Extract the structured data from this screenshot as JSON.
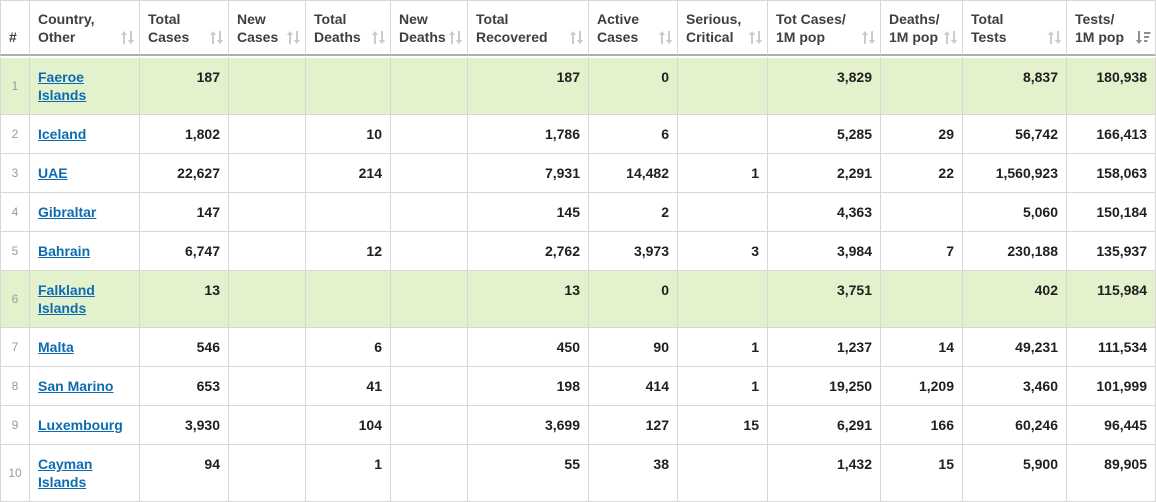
{
  "table": {
    "columns": [
      {
        "key": "rank",
        "label": "#",
        "line1": "#",
        "line2": "",
        "sort": "none"
      },
      {
        "key": "country",
        "line1": "Country,",
        "line2": "Other",
        "sort": "both"
      },
      {
        "key": "total_cases",
        "line1": "Total",
        "line2": "Cases",
        "sort": "both"
      },
      {
        "key": "new_cases",
        "line1": "New",
        "line2": "Cases",
        "sort": "both"
      },
      {
        "key": "total_deaths",
        "line1": "Total",
        "line2": "Deaths",
        "sort": "both"
      },
      {
        "key": "new_deaths",
        "line1": "New",
        "line2": "Deaths",
        "sort": "both"
      },
      {
        "key": "total_recovered",
        "line1": "Total",
        "line2": "Recovered",
        "sort": "both"
      },
      {
        "key": "active_cases",
        "line1": "Active",
        "line2": "Cases",
        "sort": "both"
      },
      {
        "key": "serious_critical",
        "line1": "Serious,",
        "line2": "Critical",
        "sort": "both"
      },
      {
        "key": "tot_cases_1m",
        "line1": "Tot Cases/",
        "line2": "1M pop",
        "sort": "both"
      },
      {
        "key": "deaths_1m",
        "line1": "Deaths/",
        "line2": "1M pop",
        "sort": "both"
      },
      {
        "key": "total_tests",
        "line1": "Total",
        "line2": "Tests",
        "sort": "both"
      },
      {
        "key": "tests_1m",
        "line1": "Tests/",
        "line2": "1M pop",
        "sort": "desc"
      }
    ],
    "rows": [
      {
        "rank": "1",
        "country": "Faeroe Islands",
        "total_cases": "187",
        "new_cases": "",
        "total_deaths": "",
        "new_deaths": "",
        "total_recovered": "187",
        "active_cases": "0",
        "serious_critical": "",
        "tot_cases_1m": "3,829",
        "deaths_1m": "",
        "total_tests": "8,837",
        "tests_1m": "180,938",
        "highlighted": true
      },
      {
        "rank": "2",
        "country": "Iceland",
        "total_cases": "1,802",
        "new_cases": "",
        "total_deaths": "10",
        "new_deaths": "",
        "total_recovered": "1,786",
        "active_cases": "6",
        "serious_critical": "",
        "tot_cases_1m": "5,285",
        "deaths_1m": "29",
        "total_tests": "56,742",
        "tests_1m": "166,413",
        "highlighted": false
      },
      {
        "rank": "3",
        "country": "UAE",
        "total_cases": "22,627",
        "new_cases": "",
        "total_deaths": "214",
        "new_deaths": "",
        "total_recovered": "7,931",
        "active_cases": "14,482",
        "serious_critical": "1",
        "tot_cases_1m": "2,291",
        "deaths_1m": "22",
        "total_tests": "1,560,923",
        "tests_1m": "158,063",
        "highlighted": false
      },
      {
        "rank": "4",
        "country": "Gibraltar",
        "total_cases": "147",
        "new_cases": "",
        "total_deaths": "",
        "new_deaths": "",
        "total_recovered": "145",
        "active_cases": "2",
        "serious_critical": "",
        "tot_cases_1m": "4,363",
        "deaths_1m": "",
        "total_tests": "5,060",
        "tests_1m": "150,184",
        "highlighted": false
      },
      {
        "rank": "5",
        "country": "Bahrain",
        "total_cases": "6,747",
        "new_cases": "",
        "total_deaths": "12",
        "new_deaths": "",
        "total_recovered": "2,762",
        "active_cases": "3,973",
        "serious_critical": "3",
        "tot_cases_1m": "3,984",
        "deaths_1m": "7",
        "total_tests": "230,188",
        "tests_1m": "135,937",
        "highlighted": false
      },
      {
        "rank": "6",
        "country": "Falkland Islands",
        "total_cases": "13",
        "new_cases": "",
        "total_deaths": "",
        "new_deaths": "",
        "total_recovered": "13",
        "active_cases": "0",
        "serious_critical": "",
        "tot_cases_1m": "3,751",
        "deaths_1m": "",
        "total_tests": "402",
        "tests_1m": "115,984",
        "highlighted": true
      },
      {
        "rank": "7",
        "country": "Malta",
        "total_cases": "546",
        "new_cases": "",
        "total_deaths": "6",
        "new_deaths": "",
        "total_recovered": "450",
        "active_cases": "90",
        "serious_critical": "1",
        "tot_cases_1m": "1,237",
        "deaths_1m": "14",
        "total_tests": "49,231",
        "tests_1m": "111,534",
        "highlighted": false
      },
      {
        "rank": "8",
        "country": "San Marino",
        "total_cases": "653",
        "new_cases": "",
        "total_deaths": "41",
        "new_deaths": "",
        "total_recovered": "198",
        "active_cases": "414",
        "serious_critical": "1",
        "tot_cases_1m": "19,250",
        "deaths_1m": "1,209",
        "total_tests": "3,460",
        "tests_1m": "101,999",
        "highlighted": false
      },
      {
        "rank": "9",
        "country": "Luxembourg",
        "total_cases": "3,930",
        "new_cases": "",
        "total_deaths": "104",
        "new_deaths": "",
        "total_recovered": "3,699",
        "active_cases": "127",
        "serious_critical": "15",
        "tot_cases_1m": "6,291",
        "deaths_1m": "166",
        "total_tests": "60,246",
        "tests_1m": "96,445",
        "highlighted": false
      },
      {
        "rank": "10",
        "country": "Cayman Islands",
        "total_cases": "94",
        "new_cases": "",
        "total_deaths": "1",
        "new_deaths": "",
        "total_recovered": "55",
        "active_cases": "38",
        "serious_critical": "",
        "tot_cases_1m": "1,432",
        "deaths_1m": "15",
        "total_tests": "5,900",
        "tests_1m": "89,905",
        "highlighted": false
      }
    ]
  },
  "colors": {
    "link_blue": "#0d6cb1",
    "row_highlight_green": "#e4f1cd",
    "header_text": "#3f3f3f",
    "value_text": "#1f1f1f",
    "rank_text": "#9a9a9a",
    "cell_border": "#d7d7d7",
    "header_bottom_border": "#aeaeae",
    "sort_icon_inactive": "#cbcbcb",
    "sort_icon_active": "#8f8f8f"
  },
  "icons": {
    "unsorted": "sort-up-down-icon",
    "sorted_descending": "sort-desc-icon"
  }
}
